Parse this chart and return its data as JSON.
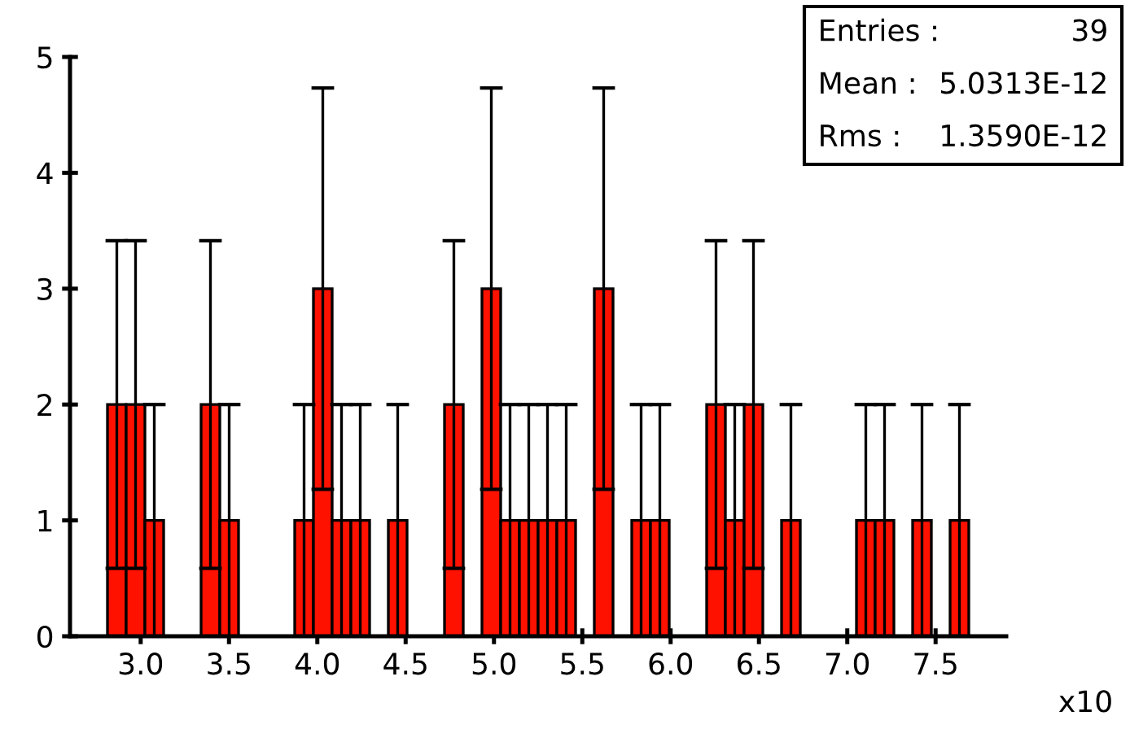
{
  "chart_data": {
    "type": "histogram",
    "bins": [
      2.6,
      2.706,
      2.812,
      2.918,
      3.024,
      3.13,
      3.236,
      3.342,
      3.448,
      3.554,
      3.66,
      3.766,
      3.872,
      3.978,
      4.084,
      4.19,
      4.296,
      4.402,
      4.508,
      4.614,
      4.72,
      4.826,
      4.932,
      5.038,
      5.144,
      5.25,
      5.356,
      5.462,
      5.568,
      5.674,
      5.78,
      5.886,
      5.992,
      6.098,
      6.204,
      6.31,
      6.416,
      6.522,
      6.628,
      6.734,
      6.84,
      6.946,
      7.052,
      7.158,
      7.264,
      7.37,
      7.476,
      7.582,
      7.688,
      7.794,
      7.9
    ],
    "values": [
      0,
      0,
      2,
      2,
      1,
      0,
      0,
      2,
      1,
      0,
      0,
      0,
      1,
      3,
      1,
      1,
      0,
      1,
      0,
      0,
      2,
      0,
      3,
      1,
      1,
      1,
      1,
      0,
      3,
      0,
      1,
      1,
      0,
      0,
      2,
      1,
      2,
      0,
      1,
      0,
      0,
      0,
      1,
      1,
      0,
      1,
      0,
      1,
      0,
      0
    ],
    "errors": [
      null,
      null,
      1.414,
      1.414,
      1,
      null,
      null,
      1.414,
      1,
      null,
      null,
      null,
      1,
      1.732,
      1,
      1,
      null,
      1,
      null,
      null,
      1.414,
      null,
      1.732,
      1,
      1,
      1,
      1,
      null,
      1.732,
      null,
      1,
      1,
      null,
      null,
      1.414,
      1,
      1.414,
      null,
      1,
      null,
      null,
      null,
      1,
      1,
      null,
      1,
      null,
      1,
      null,
      null
    ],
    "color": "#ff1100",
    "xlim": [
      2.6,
      7.9
    ],
    "xticks": [
      {
        "value": 3.0,
        "label": "3.0"
      },
      {
        "value": 3.5,
        "label": "3.5"
      },
      {
        "value": 4.0,
        "label": "4.0"
      },
      {
        "value": 4.5,
        "label": "4.5"
      },
      {
        "value": 5.0,
        "label": "5.0"
      },
      {
        "value": 5.5,
        "label": "5.5"
      },
      {
        "value": 6.0,
        "label": "6.0"
      },
      {
        "value": 6.5,
        "label": "6.5"
      },
      {
        "value": 7.0,
        "label": "7.0"
      },
      {
        "value": 7.5,
        "label": "7.5"
      }
    ],
    "ylim": [
      0,
      5
    ],
    "yticks": [
      0,
      1,
      2,
      3,
      4,
      5
    ],
    "xlabel": "x10",
    "annotations": [
      "Entries :",
      "39",
      "Mean :",
      "5.0313E-12",
      "Rms :",
      "1.3590E-12"
    ],
    "grid": false
  }
}
